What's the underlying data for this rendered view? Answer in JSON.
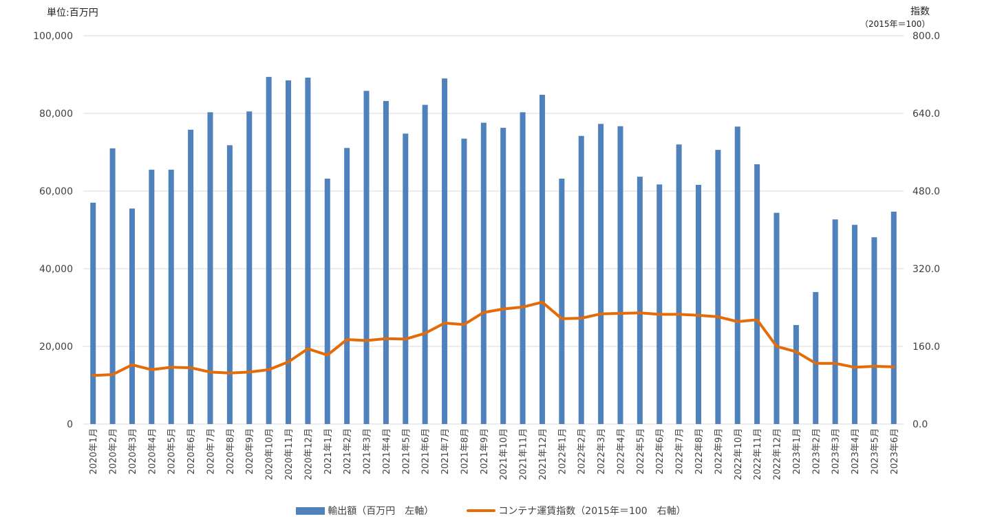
{
  "left_unit_label": "単位:百万円",
  "right_unit_label": "指数",
  "right_unit_sub": "（2015年＝100）",
  "colors": {
    "bar": "#4f81bd",
    "line": "#e36c09",
    "grid": "#d9d9d9"
  },
  "chart_data": {
    "type": "bar",
    "categories": [
      "2020年1月",
      "2020年2月",
      "2020年3月",
      "2020年4月",
      "2020年5月",
      "2020年6月",
      "2020年7月",
      "2020年8月",
      "2020年9月",
      "2020年10月",
      "2020年11月",
      "2020年12月",
      "2021年1月",
      "2021年2月",
      "2021年3月",
      "2021年4月",
      "2021年5月",
      "2021年6月",
      "2021年7月",
      "2021年8月",
      "2021年9月",
      "2021年10月",
      "2021年11月",
      "2021年12月",
      "2022年1月",
      "2022年2月",
      "2022年3月",
      "2022年4月",
      "2022年5月",
      "2022年6月",
      "2022年7月",
      "2022年8月",
      "2022年9月",
      "2022年10月",
      "2022年11月",
      "2022年12月",
      "2023年1月",
      "2023年2月",
      "2023年3月",
      "2023年4月",
      "2023年5月",
      "2023年6月"
    ],
    "series": [
      {
        "name": "輸出額（百万円　左軸）",
        "type": "bar",
        "axis": "left",
        "values": [
          57000,
          71000,
          55500,
          65500,
          65500,
          75800,
          80300,
          71800,
          80500,
          89400,
          88500,
          89200,
          63200,
          71100,
          85800,
          83200,
          74800,
          82200,
          89000,
          73500,
          77600,
          76300,
          80300,
          84800,
          63200,
          74200,
          77300,
          76700,
          63700,
          61700,
          72000,
          61600,
          70600,
          76600,
          66900,
          54400,
          25500,
          34000,
          52700,
          51300,
          48100,
          54700
        ]
      },
      {
        "name": "コンテナ運賃指数（2015年＝100　右軸）",
        "type": "line",
        "axis": "right",
        "values": [
          100,
          102,
          122,
          112,
          117,
          116,
          107,
          105,
          107,
          112,
          128,
          155,
          142,
          174,
          172,
          176,
          175,
          187,
          208,
          205,
          230,
          237,
          241,
          251,
          217,
          218,
          227,
          228,
          229,
          226,
          226,
          224,
          221,
          211,
          215,
          160,
          149,
          125,
          125,
          117,
          119,
          118
        ]
      }
    ],
    "y_left": {
      "min": 0,
      "max": 100000,
      "ticks": [
        "0",
        "20,000",
        "40,000",
        "60,000",
        "80,000",
        "100,000"
      ]
    },
    "y_right": {
      "min": 0,
      "max": 800,
      "ticks": [
        "0.0",
        "160.0",
        "320.0",
        "480.0",
        "640.0",
        "800.0"
      ]
    },
    "grid": true,
    "legend_position": "bottom"
  }
}
